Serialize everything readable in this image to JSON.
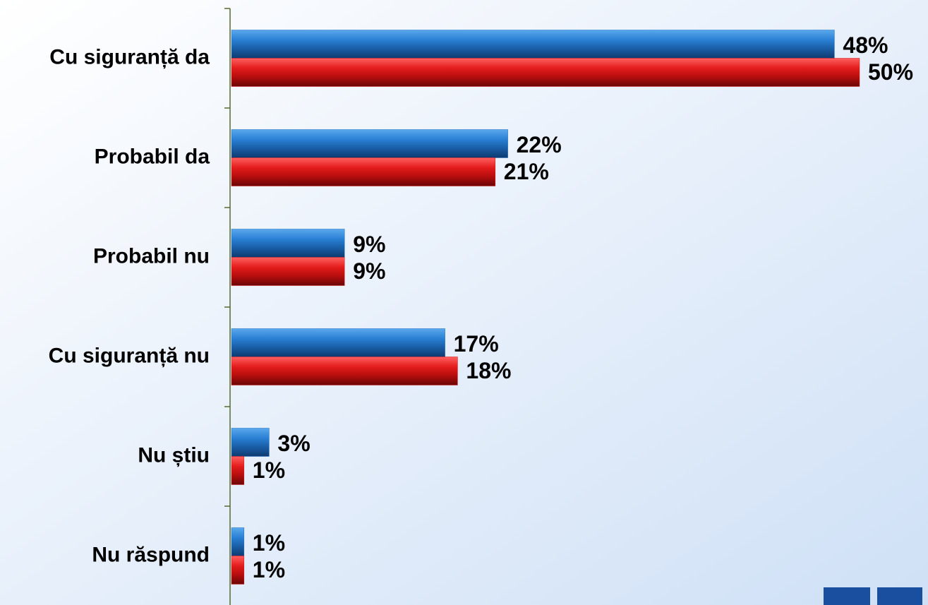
{
  "chart_data": {
    "type": "hbar",
    "categories": [
      "Cu siguranță da",
      "Probabil da",
      "Probabil nu",
      "Cu siguranță nu",
      "Nu știu",
      "Nu răspund"
    ],
    "series": [
      {
        "color": "#1f6fc4",
        "values": [
          48,
          22,
          9,
          17,
          3,
          1
        ],
        "value_labels": [
          "48%",
          "22%",
          "9%",
          "17%",
          "3%",
          "1%"
        ]
      },
      {
        "color": "#d41414",
        "values": [
          50,
          21,
          9,
          18,
          1,
          1
        ],
        "value_labels": [
          "50%",
          "21%",
          "9%",
          "18%",
          "1%",
          "1%"
        ]
      }
    ],
    "xlim": [
      0,
      55
    ]
  }
}
